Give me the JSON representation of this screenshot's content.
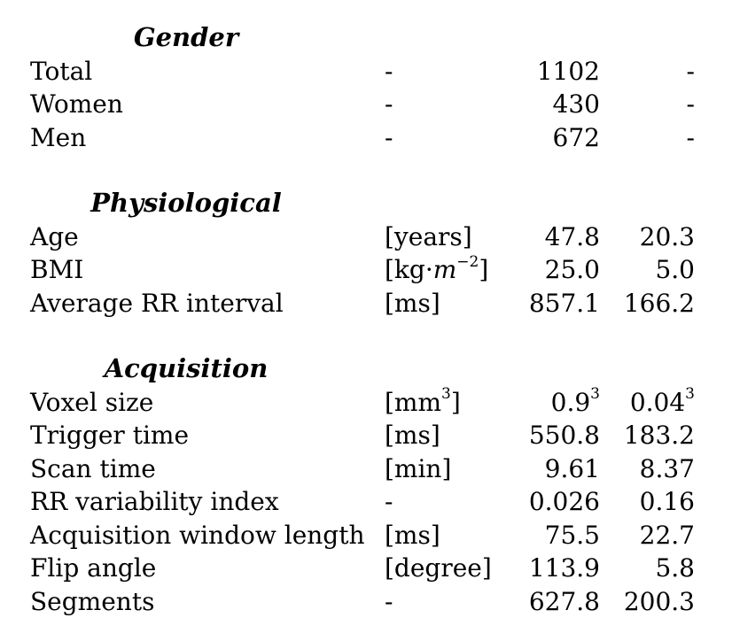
{
  "sections": [
    {
      "title": "Gender",
      "rows": [
        {
          "label": "Total",
          "unit": "-",
          "mean": "1102",
          "sd": "-"
        },
        {
          "label": "Women",
          "unit": "-",
          "mean": "430",
          "sd": "-"
        },
        {
          "label": "Men",
          "unit": "-",
          "mean": "672",
          "sd": "-"
        }
      ]
    },
    {
      "title": "Physiological",
      "rows": [
        {
          "label": "Age",
          "unit": "[years]",
          "mean": "47.8",
          "sd": "20.3"
        },
        {
          "label": "BMI",
          "unit": "[kg·m⁻²]",
          "mean": "25.0",
          "sd": "5.0"
        },
        {
          "label": "Average RR interval",
          "unit": "[ms]",
          "mean": "857.1",
          "sd": "166.2"
        }
      ]
    },
    {
      "title": "Acquisition",
      "rows": [
        {
          "label": "Voxel size",
          "unit": "[mm³]",
          "mean": "0.9³",
          "sd": "0.04³"
        },
        {
          "label": "Trigger time",
          "unit": "[ms]",
          "mean": "550.8",
          "sd": "183.2"
        },
        {
          "label": "Scan time",
          "unit": "[min]",
          "mean": "9.61",
          "sd": "8.37"
        },
        {
          "label": "RR variability index",
          "unit": "-",
          "mean": "0.026",
          "sd": "0.16"
        },
        {
          "label": "Acquisition window length",
          "unit": "[ms]",
          "mean": "75.5",
          "sd": "22.7"
        },
        {
          "label": "Flip angle",
          "unit": "[degree]",
          "mean": "113.9",
          "sd": "5.8"
        },
        {
          "label": "Segments",
          "unit": "-",
          "mean": "627.8",
          "sd": "200.3"
        }
      ]
    }
  ]
}
